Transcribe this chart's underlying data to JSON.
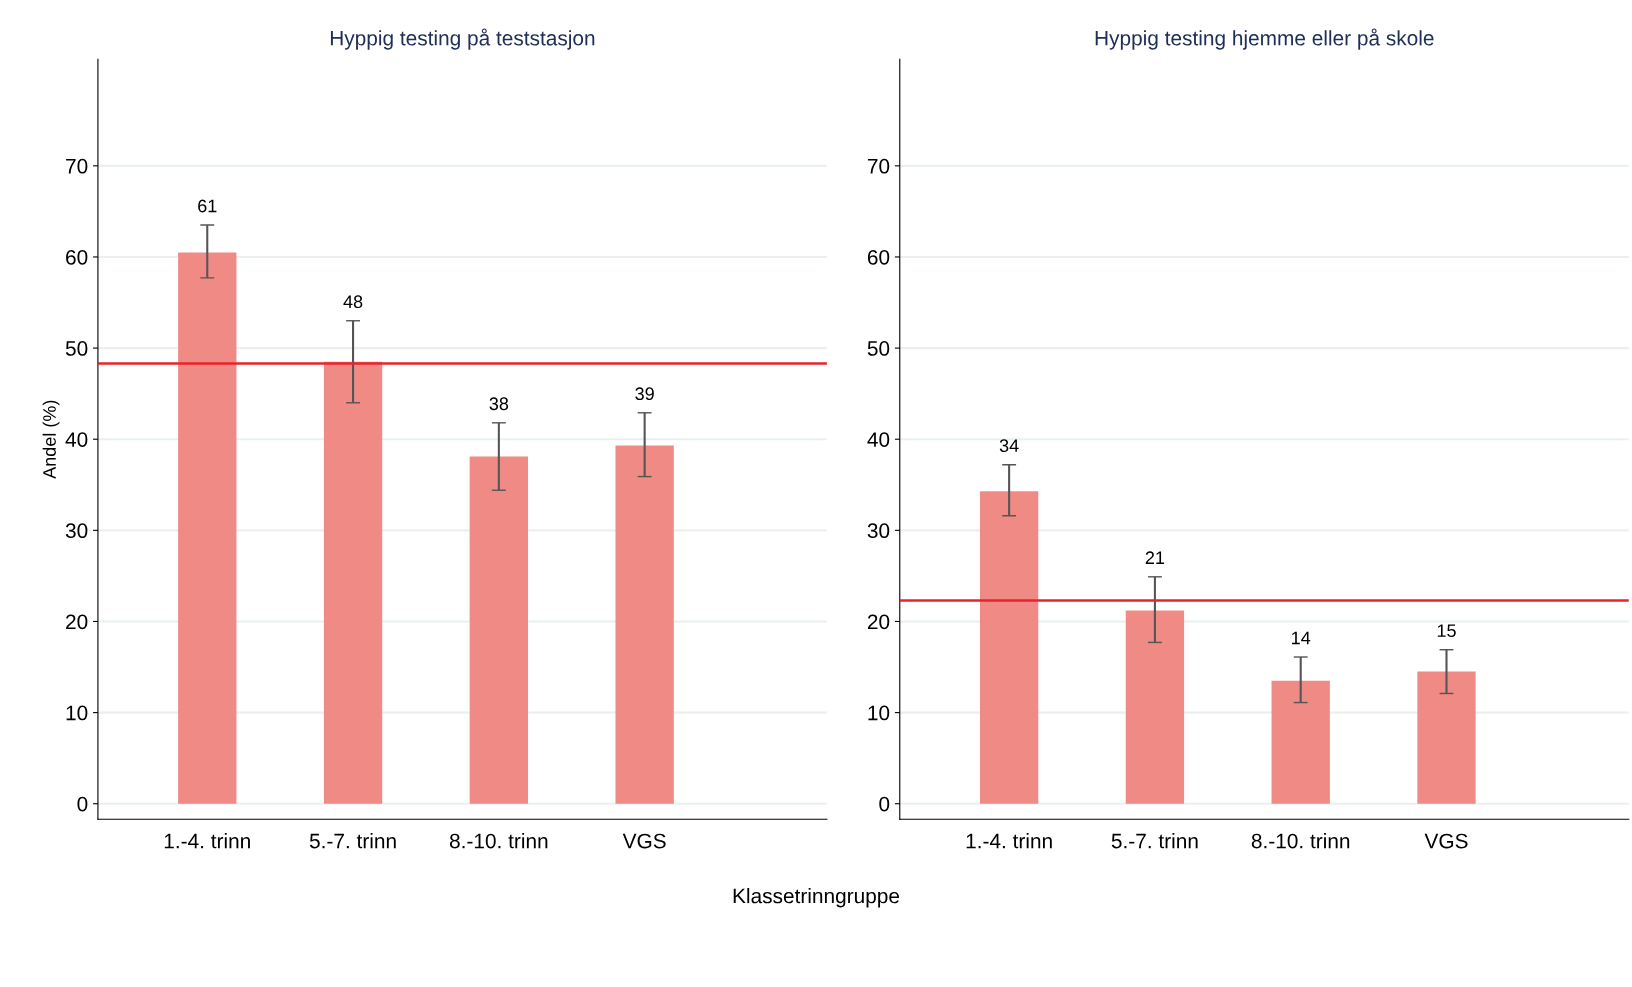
{
  "chart_data": [
    {
      "type": "bar",
      "title": "Hyppig testing på teststasjon",
      "ylabel": "Andel (%)",
      "xlabel": "Klassetrinngruppe",
      "categories": [
        "1.-4. trinn",
        "5.-7. trinn",
        "8.-10. trinn",
        "VGS"
      ],
      "values": [
        60.5,
        48.5,
        38.1,
        39.3
      ],
      "errors": [
        [
          57.7,
          63.5
        ],
        [
          44.0,
          53.0
        ],
        [
          34.4,
          41.8
        ],
        [
          35.9,
          42.9
        ]
      ],
      "value_labels": [
        "61",
        "48",
        "38",
        "39"
      ],
      "color": "#f08a84",
      "ylim": [
        -1.7,
        81.7
      ],
      "yticks": [
        0,
        10,
        20,
        30,
        40,
        50,
        60,
        70
      ],
      "grid": "y",
      "ref_lines": [
        {
          "axis": "y",
          "value": 48.3,
          "color": "#e8242a"
        }
      ]
    },
    {
      "type": "bar",
      "title": "Hyppig testing hjemme eller på skole",
      "categories": [
        "1.-4. trinn",
        "5.-7. trinn",
        "8.-10. trinn",
        "VGS"
      ],
      "values": [
        34.3,
        21.2,
        13.5,
        14.5
      ],
      "errors": [
        [
          31.6,
          37.2
        ],
        [
          17.7,
          24.9
        ],
        [
          11.1,
          16.1
        ],
        [
          12.1,
          16.9
        ]
      ],
      "value_labels": [
        "34",
        "21",
        "14",
        "15"
      ],
      "color": "#f08a84",
      "ylim": [
        -1.7,
        81.7
      ],
      "yticks": [
        0,
        10,
        20,
        30,
        40,
        50,
        60,
        70
      ],
      "grid": "y",
      "ref_lines": [
        {
          "axis": "y",
          "value": 22.3,
          "color": "#e8242a"
        }
      ]
    }
  ]
}
